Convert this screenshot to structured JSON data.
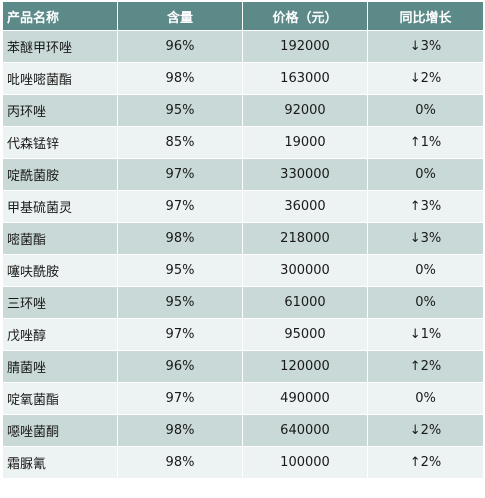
{
  "table": {
    "headers": [
      "产品名称",
      "含量",
      "价格（元）",
      "同比增长"
    ],
    "rows": [
      {
        "name": "苯醚甲环唑",
        "content": "96%",
        "price": "192000",
        "growth": "↓3%"
      },
      {
        "name": "吡唑嘧菌酯",
        "content": "98%",
        "price": "163000",
        "growth": "↓2%"
      },
      {
        "name": "丙环唑",
        "content": "95%",
        "price": "92000",
        "growth": "0%"
      },
      {
        "name": "代森锰锌",
        "content": "85%",
        "price": "19000",
        "growth": "↑1%"
      },
      {
        "name": "啶酰菌胺",
        "content": "97%",
        "price": "330000",
        "growth": "0%"
      },
      {
        "name": "甲基硫菌灵",
        "content": "97%",
        "price": "36000",
        "growth": "↑3%"
      },
      {
        "name": "嘧菌酯",
        "content": "98%",
        "price": "218000",
        "growth": "↓3%"
      },
      {
        "name": "噻呋酰胺",
        "content": "95%",
        "price": "300000",
        "growth": "0%"
      },
      {
        "name": "三环唑",
        "content": "95%",
        "price": "61000",
        "growth": "0%"
      },
      {
        "name": "戊唑醇",
        "content": "97%",
        "price": "95000",
        "growth": "↓1%"
      },
      {
        "name": "腈菌唑",
        "content": "96%",
        "price": "120000",
        "growth": "↑2%"
      },
      {
        "name": "啶氧菌酯",
        "content": "97%",
        "price": "490000",
        "growth": "0%"
      },
      {
        "name": "噁唑菌酮",
        "content": "98%",
        "price": "640000",
        "growth": "↓2%"
      },
      {
        "name": "霜脲氰",
        "content": "98%",
        "price": "100000",
        "growth": "↑2%"
      }
    ]
  },
  "colors": {
    "header_bg": "#5b8a88",
    "row_dark": "#c9d9d7",
    "row_light": "#edf2f2"
  }
}
